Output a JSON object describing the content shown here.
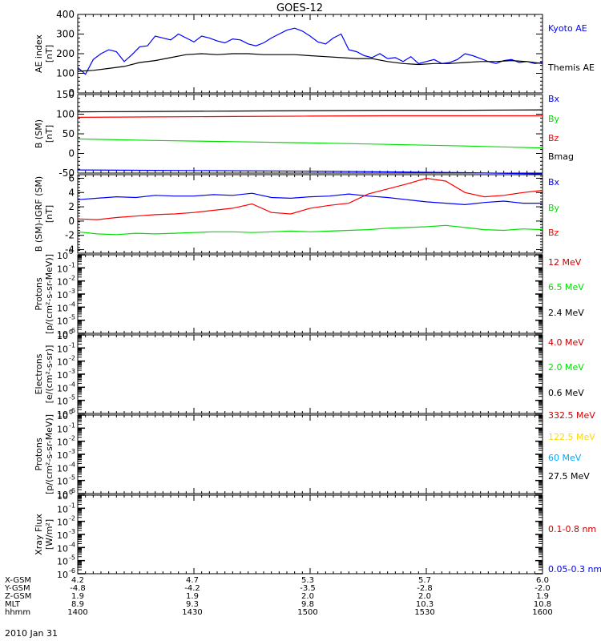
{
  "title": "GOES-12",
  "date": "2010 Jan 31",
  "colors": {
    "black": "#000000",
    "blue": "#0000ff",
    "red": "#ff0000",
    "darkred": "#cc0000",
    "green": "#00e000",
    "yellow": "#ffd800",
    "cyan": "#00a8ff"
  },
  "ephemeris": {
    "labels": [
      "X-GSM",
      "Y-GSM",
      "Z-GSM",
      "MLT",
      "hhmm"
    ],
    "columns": [
      [
        "4.2",
        "-4.8",
        "1.9",
        "8.9",
        "1400"
      ],
      [
        "4.7",
        "-4.2",
        "1.9",
        "9.3",
        "1430"
      ],
      [
        "5.3",
        "-3.5",
        "2.0",
        "9.8",
        "1500"
      ],
      [
        "5.7",
        "-2.8",
        "2.0",
        "10.3",
        "1530"
      ],
      [
        "6.0",
        "-2.0",
        "1.9",
        "10.8",
        "1600"
      ]
    ]
  },
  "chart_data": [
    {
      "type": "line",
      "ylabel": [
        "AE index",
        "[nT]"
      ],
      "ylim": [
        0,
        400
      ],
      "yticks": [
        "0",
        "100",
        "200",
        "300",
        "400"
      ],
      "ytick_values": [
        0,
        100,
        200,
        300,
        400
      ],
      "x_unit": "minutes after 14:00 UT",
      "xlim": [
        0,
        120
      ],
      "series": [
        {
          "name": "Kyoto AE",
          "color": "blue",
          "x": [
            0,
            2,
            4,
            6,
            8,
            10,
            12,
            14,
            16,
            18,
            20,
            22,
            24,
            26,
            28,
            30,
            32,
            34,
            36,
            38,
            40,
            42,
            44,
            46,
            48,
            50,
            52,
            54,
            56,
            58,
            60,
            62,
            64,
            66,
            68,
            70,
            72,
            74,
            76,
            78,
            80,
            82,
            84,
            86,
            88,
            90,
            92,
            94,
            96,
            98,
            100,
            102,
            104,
            106,
            108,
            110,
            112,
            114,
            116,
            118,
            120
          ],
          "y": [
            130,
            95,
            170,
            200,
            220,
            210,
            160,
            195,
            235,
            240,
            290,
            280,
            270,
            300,
            280,
            260,
            290,
            280,
            265,
            255,
            275,
            270,
            250,
            240,
            255,
            280,
            300,
            320,
            330,
            315,
            290,
            260,
            250,
            280,
            300,
            220,
            210,
            190,
            180,
            200,
            175,
            180,
            160,
            185,
            150,
            160,
            170,
            150,
            155,
            170,
            200,
            190,
            175,
            160,
            150,
            165,
            170,
            155,
            160,
            150,
            155
          ]
        },
        {
          "name": "Themis AE",
          "color": "black",
          "x": [
            0,
            4,
            8,
            12,
            16,
            20,
            24,
            28,
            32,
            36,
            40,
            44,
            48,
            52,
            56,
            60,
            64,
            68,
            72,
            76,
            80,
            84,
            88,
            92,
            96,
            100,
            104,
            108,
            112,
            116,
            120
          ],
          "y": [
            110,
            115,
            125,
            135,
            155,
            165,
            180,
            195,
            200,
            195,
            200,
            200,
            195,
            195,
            195,
            190,
            185,
            180,
            175,
            175,
            160,
            150,
            145,
            150,
            150,
            155,
            160,
            160,
            165,
            160,
            150
          ]
        }
      ]
    },
    {
      "type": "line",
      "ylabel": [
        "B (SM)",
        "[nT]"
      ],
      "ylim": [
        -50,
        150
      ],
      "yticks": [
        "-50",
        "0",
        "50",
        "100",
        "150"
      ],
      "ytick_values": [
        -50,
        0,
        50,
        100,
        150
      ],
      "xlim": [
        0,
        120
      ],
      "series": [
        {
          "name": "Bx",
          "color": "blue",
          "x": [
            0,
            20,
            40,
            60,
            80,
            100,
            120
          ],
          "y": [
            -42,
            -43,
            -44,
            -45,
            -47,
            -49,
            -52
          ]
        },
        {
          "name": "By",
          "color": "green",
          "x": [
            0,
            20,
            40,
            60,
            80,
            100,
            120
          ],
          "y": [
            37,
            33,
            30,
            27,
            23,
            19,
            14
          ]
        },
        {
          "name": "Bz",
          "color": "red",
          "x": [
            0,
            20,
            40,
            60,
            80,
            100,
            120
          ],
          "y": [
            92,
            93,
            94,
            95,
            96,
            96,
            96
          ]
        },
        {
          "name": "Bmag",
          "color": "black",
          "x": [
            0,
            20,
            40,
            60,
            80,
            100,
            120
          ],
          "y": [
            106,
            107,
            108,
            109,
            110,
            110,
            111
          ]
        }
      ]
    },
    {
      "type": "line",
      "ylabel": [
        "B (SM)-IGRF (SM)",
        "[nT]"
      ],
      "ylim": [
        -4.5,
        6.5
      ],
      "yticks": [
        "-4",
        "-2",
        "0",
        "2",
        "4",
        "6"
      ],
      "ytick_values": [
        -4,
        -2,
        0,
        2,
        4,
        6
      ],
      "xlim": [
        0,
        120
      ],
      "series": [
        {
          "name": "Bx",
          "color": "blue",
          "x": [
            0,
            5,
            10,
            15,
            20,
            25,
            30,
            35,
            40,
            45,
            50,
            55,
            60,
            65,
            70,
            75,
            80,
            85,
            90,
            95,
            100,
            105,
            110,
            115,
            120
          ],
          "y": [
            3.0,
            3.2,
            3.4,
            3.3,
            3.6,
            3.5,
            3.5,
            3.7,
            3.6,
            3.9,
            3.3,
            3.2,
            3.4,
            3.5,
            3.8,
            3.5,
            3.3,
            3.0,
            2.7,
            2.5,
            2.3,
            2.6,
            2.8,
            2.5,
            2.5
          ]
        },
        {
          "name": "By",
          "color": "green",
          "x": [
            0,
            5,
            10,
            15,
            20,
            25,
            30,
            35,
            40,
            45,
            50,
            55,
            60,
            65,
            70,
            75,
            80,
            85,
            90,
            95,
            100,
            105,
            110,
            115,
            120
          ],
          "y": [
            -1.5,
            -1.8,
            -1.9,
            -1.7,
            -1.8,
            -1.7,
            -1.6,
            -1.5,
            -1.5,
            -1.6,
            -1.5,
            -1.4,
            -1.5,
            -1.4,
            -1.3,
            -1.2,
            -1.0,
            -0.9,
            -0.8,
            -0.6,
            -0.9,
            -1.2,
            -1.3,
            -1.1,
            -1.2
          ]
        },
        {
          "name": "Bz",
          "color": "red",
          "x": [
            0,
            5,
            10,
            15,
            20,
            25,
            30,
            35,
            40,
            45,
            50,
            55,
            60,
            65,
            70,
            75,
            80,
            85,
            90,
            95,
            100,
            105,
            110,
            115,
            120
          ],
          "y": [
            0.3,
            0.2,
            0.5,
            0.7,
            0.9,
            1.0,
            1.2,
            1.5,
            1.8,
            2.4,
            1.2,
            1.0,
            1.8,
            2.2,
            2.5,
            3.8,
            4.5,
            5.2,
            6.0,
            5.6,
            4.0,
            3.4,
            3.6,
            4.0,
            4.3
          ]
        }
      ]
    },
    {
      "type": "line",
      "ylabel": [
        "Protons",
        "[p/(cm²-s-sr-MeV)]"
      ],
      "ylim": [
        -6,
        0
      ],
      "log": true,
      "yticks_base": [
        "10",
        "10",
        "10",
        "10",
        "10",
        "10",
        "10"
      ],
      "yticks_exp": [
        "-6",
        "-5",
        "-4",
        "-3",
        "-2",
        "-1",
        "0"
      ],
      "xlim": [
        0,
        120
      ],
      "series": [
        {
          "name": "12 MeV",
          "color": "darkred",
          "x": [],
          "y": []
        },
        {
          "name": "6.5 MeV",
          "color": "green",
          "x": [],
          "y": []
        },
        {
          "name": "2.4 MeV",
          "color": "black",
          "x": [],
          "y": []
        }
      ]
    },
    {
      "type": "line",
      "ylabel": [
        "Electrons",
        "[e/(cm²-s-sr)]"
      ],
      "ylim": [
        -6,
        0
      ],
      "log": true,
      "yticks_base": [
        "10",
        "10",
        "10",
        "10",
        "10",
        "10",
        "10"
      ],
      "yticks_exp": [
        "-6",
        "-5",
        "-4",
        "-3",
        "-2",
        "-1",
        "0"
      ],
      "xlim": [
        0,
        120
      ],
      "series": [
        {
          "name": "4.0 MeV",
          "color": "darkred",
          "x": [],
          "y": []
        },
        {
          "name": "2.0 MeV",
          "color": "green",
          "x": [],
          "y": []
        },
        {
          "name": "0.6 MeV",
          "color": "black",
          "x": [],
          "y": []
        }
      ]
    },
    {
      "type": "line",
      "ylabel": [
        "Protons",
        "[p/(cm²-s-sr-MeV)]"
      ],
      "ylim": [
        -6,
        0
      ],
      "log": true,
      "yticks_base": [
        "10",
        "10",
        "10",
        "10",
        "10",
        "10",
        "10"
      ],
      "yticks_exp": [
        "-6",
        "-5",
        "-4",
        "-3",
        "-2",
        "-1",
        "0"
      ],
      "xlim": [
        0,
        120
      ],
      "series": [
        {
          "name": "332.5 MeV",
          "color": "darkred",
          "x": [],
          "y": []
        },
        {
          "name": "122.5 MeV",
          "color": "yellow",
          "x": [],
          "y": []
        },
        {
          "name": "60 MeV",
          "color": "cyan",
          "x": [],
          "y": []
        },
        {
          "name": "27.5 MeV",
          "color": "black",
          "x": [],
          "y": []
        }
      ]
    },
    {
      "type": "line",
      "ylabel": [
        "Xray Flux",
        "[W/m²]"
      ],
      "ylim": [
        -6,
        0
      ],
      "log": true,
      "yticks_base": [
        "10",
        "10",
        "10",
        "10",
        "10",
        "10",
        "10"
      ],
      "yticks_exp": [
        "-6",
        "-5",
        "-4",
        "-3",
        "-2",
        "-1",
        "0"
      ],
      "xlim": [
        0,
        120
      ],
      "series": [
        {
          "name": "0.1-0.8 nm",
          "color": "darkred",
          "x": [],
          "y": []
        },
        {
          "name": "0.05-0.3 nm",
          "color": "blue",
          "x": [],
          "y": []
        }
      ]
    }
  ]
}
